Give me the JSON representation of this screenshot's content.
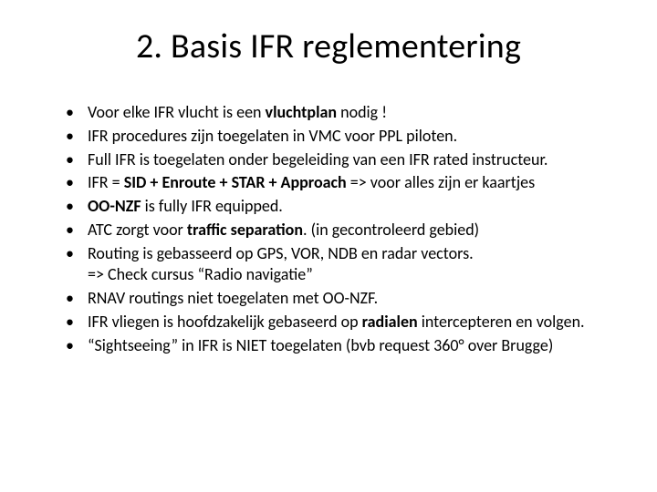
{
  "slide": {
    "title": "2. Basis IFR reglementering",
    "bullets": [
      {
        "pre": "Voor elke IFR vlucht is een ",
        "bold": "vluchtplan",
        "post": " nodig !"
      },
      {
        "pre": "IFR procedures zijn toegelaten in VMC voor PPL piloten.",
        "bold": "",
        "post": ""
      },
      {
        "pre": "Full IFR is toegelaten onder begeleiding van een IFR rated instructeur.",
        "bold": "",
        "post": ""
      },
      {
        "pre": "IFR = ",
        "bold": "SID + Enroute + STAR + Approach",
        "post": " => voor alles zijn er kaartjes"
      },
      {
        "pre": "",
        "bold": "OO-NZF",
        "post": " is fully IFR equipped."
      },
      {
        "pre": "ATC zorgt voor ",
        "bold": "traffic separation",
        "post": ". (in gecontroleerd gebied)"
      },
      {
        "pre": "Routing is gebasseerd op GPS, VOR, NDB en radar vectors.",
        "bold": "",
        "post": "",
        "cont": "=> Check cursus “Radio navigatie”"
      },
      {
        "pre": "RNAV routings niet toegelaten met OO-NZF.",
        "bold": "",
        "post": ""
      },
      {
        "pre": "IFR vliegen is hoofdzakelijk gebaseerd op ",
        "bold": "radialen",
        "post": " intercepteren en volgen."
      },
      {
        "pre": "“Sightseeing” in IFR is NIET toegelaten (bvb request 360° over Brugge)",
        "bold": "",
        "post": ""
      }
    ]
  },
  "style": {
    "background_color": "#ffffff",
    "text_color": "#000000",
    "title_fontsize": 38,
    "body_fontsize": 18,
    "font_family": "Calibri"
  }
}
